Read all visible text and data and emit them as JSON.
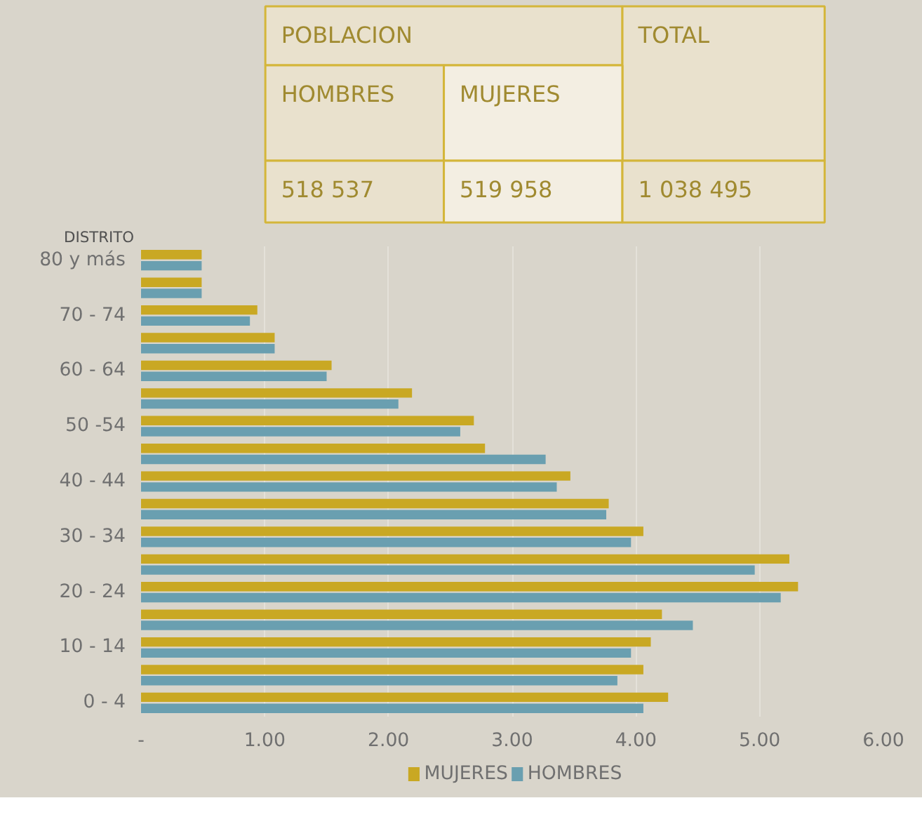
{
  "chart_data": [
    {
      "type": "other",
      "annotations": [
        "POBLACION",
        "TOTAL",
        "HOMBRES",
        "MUJERES",
        "518 537",
        "519 958",
        "1 038 495"
      ]
    },
    {
      "type": "bar",
      "orientation": "horizontal",
      "ylabel": "DISTRITO",
      "categories": [
        "80 y más",
        null,
        "70 - 74",
        null,
        "60 - 64",
        null,
        "50 -54",
        null,
        "40 - 44",
        null,
        "30 - 34",
        null,
        "20 - 24",
        null,
        "10 - 14",
        null,
        "0 - 4"
      ],
      "series": [
        {
          "name": "MUJERES",
          "color": "#c9a823",
          "values": [
            0.49,
            0.49,
            0.94,
            1.08,
            1.54,
            2.19,
            2.69,
            2.78,
            3.47,
            3.78,
            4.06,
            5.24,
            5.31,
            4.21,
            4.12,
            4.06,
            4.26
          ]
        },
        {
          "name": "HOMBRES",
          "color": "#6a9fb0",
          "values": [
            0.49,
            0.49,
            0.88,
            1.08,
            1.5,
            2.08,
            2.58,
            3.27,
            3.36,
            3.76,
            3.96,
            4.96,
            5.17,
            4.46,
            3.96,
            3.85,
            4.06
          ]
        }
      ],
      "xlim": [
        0,
        6
      ],
      "xticks": [
        {
          "value": 0,
          "label": "-"
        },
        {
          "value": 1,
          "label": "1.00"
        },
        {
          "value": 2,
          "label": "2.00"
        },
        {
          "value": 3,
          "label": "3.00"
        },
        {
          "value": 4,
          "label": "4.00"
        },
        {
          "value": 5,
          "label": "5.00"
        },
        {
          "value": 6,
          "label": "6.00"
        }
      ],
      "grid": "x",
      "legend": "bottom"
    }
  ]
}
